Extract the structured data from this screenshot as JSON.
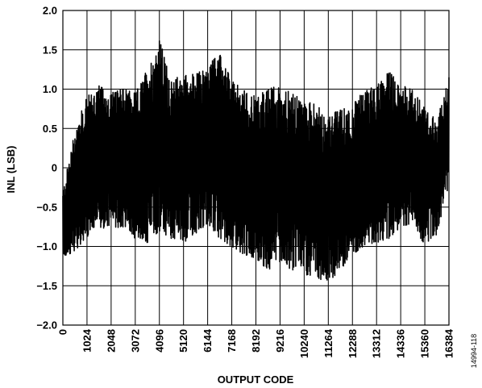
{
  "chart_data": {
    "type": "line",
    "title": "",
    "xlabel": "OUTPUT CODE",
    "ylabel": "INL (LSB)",
    "xlim": [
      0,
      16384
    ],
    "ylim": [
      -2.0,
      2.0
    ],
    "x_ticks": [
      "0",
      "1024",
      "2048",
      "3072",
      "4096",
      "5120",
      "6144",
      "7168",
      "8192",
      "9216",
      "10240",
      "11264",
      "12288",
      "13312",
      "14336",
      "15360",
      "16384"
    ],
    "y_ticks": [
      "2.0",
      "1.5",
      "1.0",
      "0.5",
      "0",
      "−0.5",
      "−1.0",
      "−1.5",
      "−2.0"
    ],
    "grid": true,
    "series_color": "#000000",
    "series": [
      {
        "x": [
          0,
          512,
          1024,
          1536,
          2048,
          2560,
          3072,
          3584,
          4096,
          4608,
          5120,
          5632,
          6144,
          6656,
          7168,
          7680,
          8192,
          8704,
          9216,
          9728,
          10240,
          10752,
          11264,
          11776,
          12288,
          12800,
          13312,
          13824,
          14336,
          14848,
          15360,
          15872,
          16384
        ],
        "y_max": [
          -0.3,
          0.5,
          0.9,
          1.05,
          0.95,
          1.0,
          0.95,
          1.25,
          1.65,
          1.1,
          1.2,
          1.2,
          1.3,
          1.45,
          1.1,
          1.0,
          0.9,
          1.0,
          1.05,
          0.95,
          0.85,
          0.8,
          0.65,
          0.75,
          0.8,
          1.0,
          1.05,
          1.25,
          1.05,
          1.0,
          0.75,
          0.6,
          1.15
        ],
        "y_min": [
          -1.15,
          -1.05,
          -0.9,
          -0.75,
          -0.8,
          -0.75,
          -0.9,
          -0.95,
          -0.8,
          -0.9,
          -0.95,
          -0.85,
          -0.7,
          -0.9,
          -1.0,
          -1.1,
          -1.15,
          -1.3,
          -1.2,
          -1.3,
          -1.35,
          -1.4,
          -1.45,
          -1.3,
          -1.1,
          -1.0,
          -0.95,
          -0.9,
          -0.75,
          -0.7,
          -1.0,
          -0.85,
          -0.2
        ]
      }
    ]
  },
  "figure_id": "14994-118"
}
